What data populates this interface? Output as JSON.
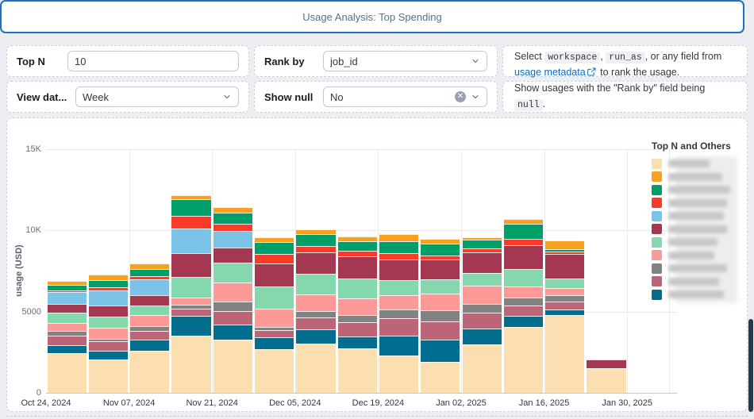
{
  "header": {
    "title": "Usage Analysis: Top Spending"
  },
  "controls": {
    "top_n": {
      "label": "Top N",
      "value": "10"
    },
    "rank_by": {
      "label": "Rank by",
      "value": "job_id"
    },
    "view_date": {
      "label": "View dat...",
      "value": "Week"
    },
    "show_null": {
      "label": "Show null",
      "value": "No"
    },
    "rank_by_help": {
      "part1": "Select ",
      "code1": "workspace",
      "part2": ", ",
      "code2": "run_as",
      "part3": ", or any field from ",
      "link_text": "usage metadata",
      "part4": " to rank the usage."
    },
    "show_null_help": {
      "part1": "Show usages with the \"Rank by\" field being ",
      "code1": "null",
      "part2": "."
    }
  },
  "chart": {
    "y_axis_title": "usage (USD)",
    "legend_title": "Top N and Others",
    "legend_labels_blurred": true,
    "legend_blur_widths": [
      52,
      68,
      78,
      74,
      70,
      74,
      62,
      58,
      74,
      64,
      70
    ]
  },
  "chart_data": {
    "type": "bar",
    "stacked": true,
    "ylabel": "usage (USD)",
    "ylim": [
      0,
      15000
    ],
    "y_ticks": {
      "labels": [
        "0",
        "5000",
        "10K",
        "15K"
      ],
      "values": [
        0,
        5000,
        10000,
        15000
      ]
    },
    "x_tick_labels": [
      "Oct 24, 2024",
      "Nov 07, 2024",
      "Nov 21, 2024",
      "Dec 05, 2024",
      "Dec 19, 2024",
      "Jan 02, 2025",
      "Jan 16, 2025",
      "Jan 30, 2025"
    ],
    "categories": [
      "Oct 24, 2024",
      "Oct 31, 2024",
      "Nov 07, 2024",
      "Nov 14, 2024",
      "Nov 21, 2024",
      "Nov 28, 2024",
      "Dec 05, 2024",
      "Dec 12, 2024",
      "Dec 19, 2024",
      "Dec 26, 2024",
      "Jan 02, 2025",
      "Jan 09, 2025",
      "Jan 16, 2025",
      "Jan 23, 2025"
    ],
    "legend_position": "right",
    "grid": true,
    "series": [
      {
        "name": "series_1_redacted",
        "color": "#FCDFB1",
        "values": [
          2450,
          2060,
          2580,
          3525,
          3280,
          2710,
          3020,
          2740,
          2320,
          1915,
          2970,
          4070,
          4800,
          1500
        ]
      },
      {
        "name": "series_2_redacted",
        "color": "#F9A11E",
        "values": [
          270,
          360,
          310,
          275,
          355,
          290,
          330,
          330,
          405,
          325,
          180,
          290,
          570,
          0
        ]
      },
      {
        "name": "series_3_redacted",
        "color": "#009F69",
        "values": [
          320,
          450,
          430,
          1000,
          695,
          710,
          735,
          560,
          725,
          730,
          500,
          945,
          120,
          0
        ]
      },
      {
        "name": "series_4_redacted",
        "color": "#FB3A28",
        "values": [
          100,
          195,
          240,
          800,
          435,
          615,
          390,
          330,
          405,
          240,
          290,
          405,
          180,
          0
        ]
      },
      {
        "name": "series_5_redacted",
        "color": "#7CC3E8",
        "values": [
          710,
          905,
          950,
          1500,
          1020,
          0,
          0,
          0,
          0,
          0,
          0,
          0,
          0,
          0
        ]
      },
      {
        "name": "series_6_redacted",
        "color": "#A43853",
        "values": [
          560,
          710,
          650,
          1450,
          920,
          1420,
          1300,
          1400,
          1295,
          1210,
          1230,
          1450,
          1500,
          550
        ]
      },
      {
        "name": "series_7_redacted",
        "color": "#85D7AE",
        "values": [
          615,
          650,
          600,
          1290,
          1210,
          1325,
          1280,
          1200,
          890,
          885,
          780,
          1050,
          600,
          0
        ]
      },
      {
        "name": "series_8_redacted",
        "color": "#FD9A98",
        "values": [
          490,
          700,
          650,
          445,
          1165,
          1140,
          1000,
          1040,
          885,
          1050,
          1120,
          720,
          440,
          0
        ]
      },
      {
        "name": "series_9_redacted",
        "color": "#828282",
        "values": [
          300,
          150,
          325,
          250,
          615,
          220,
          420,
          430,
          565,
          645,
          545,
          460,
          380,
          0
        ]
      },
      {
        "name": "series_10_redacted",
        "color": "#BC6577",
        "values": [
          580,
          600,
          530,
          450,
          810,
          420,
          740,
          870,
          1050,
          1130,
          980,
          640,
          480,
          0
        ]
      },
      {
        "name": "series_11_redacted",
        "color": "#016D8F",
        "values": [
          500,
          520,
          680,
          1190,
          930,
          710,
          865,
          740,
          1210,
          1370,
          1000,
          680,
          330,
          0
        ]
      }
    ],
    "stack_order_bottom_to_top": [
      0,
      10,
      9,
      8,
      7,
      6,
      5,
      4,
      3,
      2,
      1
    ]
  }
}
